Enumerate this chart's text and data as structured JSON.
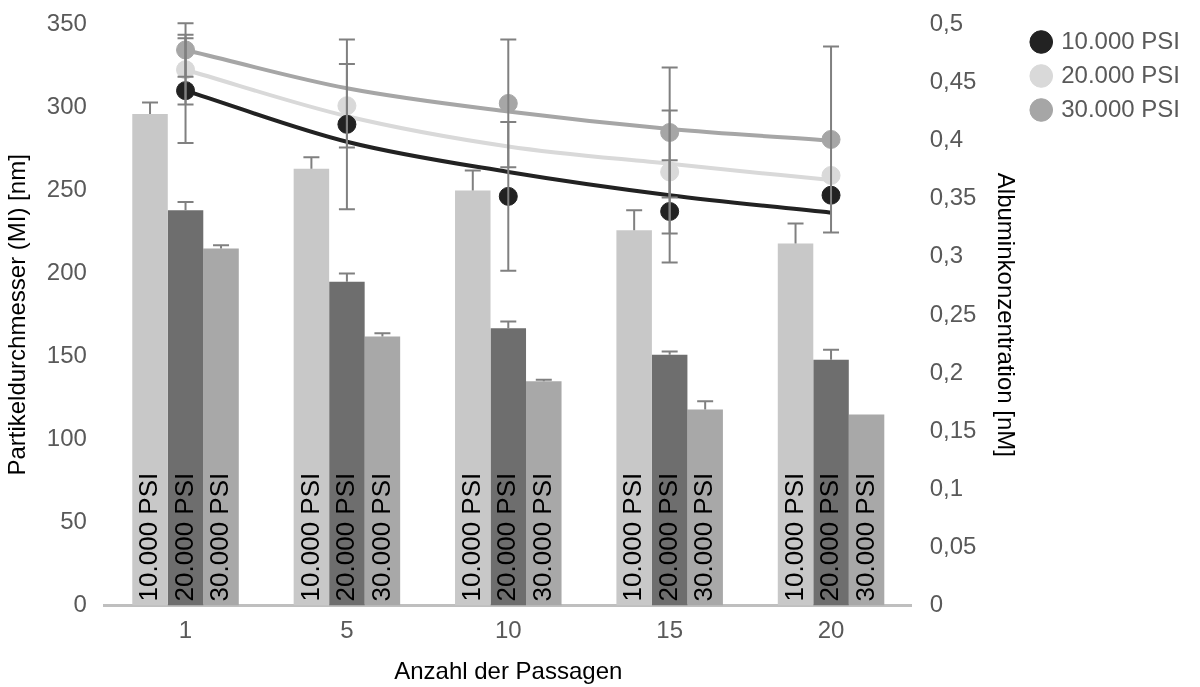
{
  "chart_data": {
    "type": "bar",
    "xlabel": "Anzahl der Passagen",
    "ylabel": "Partikeldurchmesser (MI) [nm]",
    "y2label": "Albuminkonzentration [nM]",
    "categories": [
      "1",
      "5",
      "10",
      "15",
      "20"
    ],
    "series": [
      {
        "name": "10.000 PSI",
        "color": "#c8c8c8",
        "values": [
          296,
          263,
          250,
          226,
          218
        ],
        "errors": [
          7,
          7,
          12,
          12,
          12
        ]
      },
      {
        "name": "20.000 PSI",
        "color": "#6e6e6e",
        "values": [
          238,
          195,
          167,
          151,
          148
        ],
        "errors": [
          5,
          5,
          4,
          2,
          6
        ]
      },
      {
        "name": "30.000 PSI",
        "color": "#a8a8a8",
        "values": [
          215,
          162,
          135,
          118,
          115
        ],
        "errors": [
          2,
          2,
          1,
          5,
          null
        ]
      },
      {
        "name": "10.000 PSI",
        "type": "scatter",
        "axis": "y2",
        "color": "#222222",
        "values": [
          0.443,
          0.414,
          0.352,
          0.339,
          0.353
        ],
        "errors": [
          0.045,
          0.073,
          0.064,
          0.044,
          null
        ]
      },
      {
        "name": "20.000 PSI",
        "type": "scatter",
        "axis": "y2",
        "color": "#d9d9d9",
        "values": [
          0.461,
          0.43,
          null,
          0.373,
          0.37
        ],
        "errors": [
          0.03,
          0.036,
          null,
          0.053,
          null
        ]
      },
      {
        "name": "30.000 PSI",
        "type": "scatter",
        "axis": "y2",
        "color": "#a6a6a6",
        "values": [
          0.478,
          null,
          0.432,
          0.407,
          0.401
        ],
        "errors": [
          0.023,
          null,
          0.055,
          0.056,
          0.08
        ]
      },
      {
        "type": "line",
        "marker": "none",
        "axis": "y2",
        "color": "#222222",
        "values": [
          0.443,
          0.399,
          0.373,
          0.353,
          0.338
        ]
      },
      {
        "type": "line",
        "marker": "none",
        "axis": "y2",
        "color": "#d9d9d9",
        "values": [
          0.461,
          0.421,
          0.395,
          0.38,
          0.366
        ]
      },
      {
        "type": "line",
        "marker": "none",
        "axis": "y2",
        "color": "#a6a6a6",
        "values": [
          0.478,
          0.445,
          0.425,
          0.41,
          0.4
        ]
      }
    ],
    "ylim": [
      0,
      350
    ],
    "yticks": [
      0,
      50,
      100,
      150,
      200,
      250,
      300,
      350
    ],
    "y2lim": [
      0,
      0.5
    ],
    "y2ticks": [
      {
        "value": 0,
        "label": "0"
      },
      {
        "value": 0.05,
        "label": "0,05"
      },
      {
        "value": 0.1,
        "label": "0,1"
      },
      {
        "value": 0.15,
        "label": "0,15"
      },
      {
        "value": 0.2,
        "label": "0,2"
      },
      {
        "value": 0.25,
        "label": "0,25"
      },
      {
        "value": 0.3,
        "label": "0,3"
      },
      {
        "value": 0.35,
        "label": "0,35"
      },
      {
        "value": 0.4,
        "label": "0,4"
      },
      {
        "value": 0.45,
        "label": "0,45"
      },
      {
        "value": 0.5,
        "label": "0,5"
      }
    ],
    "grid": false,
    "legend": "top right",
    "marker": "circle",
    "line_style": "solid"
  }
}
